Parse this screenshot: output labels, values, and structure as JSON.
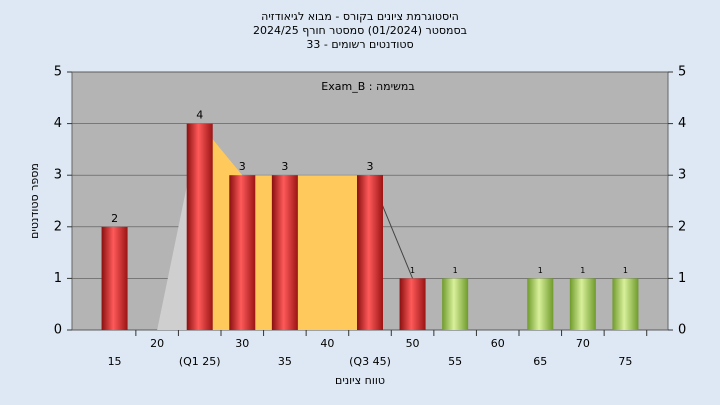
{
  "chart_data": {
    "type": "bar",
    "title": "היסטוגרמת ציונים בקורס - מבוא לגיאודזיה",
    "subtitle": "בסמסטר  (01/2024)  סמסטר חורף 2024/25",
    "subtitle2": "סטודנטים רשומים - 33",
    "annotation": "במשימה : Exam_B",
    "x_label": "טווח ציונים",
    "y_label": "מספר סטודנטים",
    "categories": [
      "15",
      "20",
      "(Q1 25)",
      "30",
      "35",
      "40",
      "(Q3 45)",
      "50",
      "55",
      "60",
      "65",
      "70",
      "75"
    ],
    "values": [
      2,
      0,
      4,
      3,
      3,
      0,
      3,
      1,
      1,
      0,
      1,
      1,
      1
    ],
    "colors": [
      "#d42a2a",
      "#d42a2a",
      "#d42a2a",
      "#d42a2a",
      "#d42a2a",
      "#d42a2a",
      "#d42a2a",
      "#d42a2a",
      "#9cc45a",
      "#9cc45a",
      "#9cc45a",
      "#9cc45a",
      "#9cc45a"
    ],
    "ylim": [
      0,
      5
    ],
    "yticks": [
      0,
      1,
      2,
      3,
      4,
      5
    ],
    "y2lim": [
      0,
      5
    ],
    "y2ticks": [
      0,
      1,
      2,
      3,
      4,
      5
    ],
    "grid": true
  }
}
